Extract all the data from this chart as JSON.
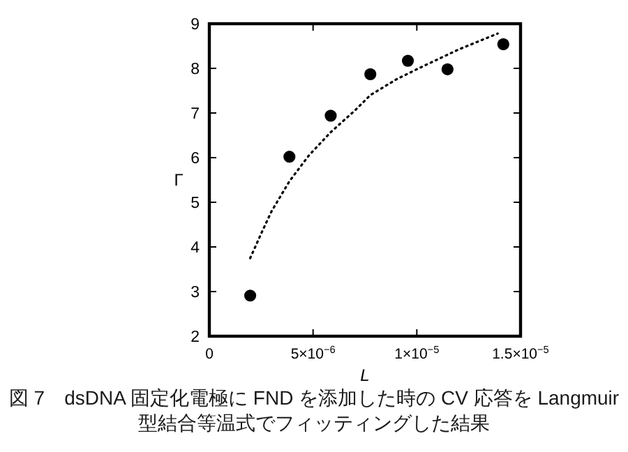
{
  "chart_data": {
    "type": "scatter",
    "xlabel": "L",
    "ylabel": "Γ",
    "xlim": [
      0,
      1.5e-05
    ],
    "ylim": [
      2,
      9
    ],
    "xticks": [
      0,
      {
        "value": 5e-06,
        "label": "5×10$^{−6}$"
      },
      {
        "value": 1e-05,
        "label": "1×10$^{−5}$"
      },
      {
        "value": 1.5e-05,
        "label": "1.5×10$^{−5}$"
      }
    ],
    "yticks": [
      2,
      3,
      4,
      5,
      6,
      7,
      8,
      9
    ],
    "grid": false,
    "series": [
      {
        "color": "#000000",
        "marker": "circle",
        "x": [
          1.97e-06,
          3.86e-06,
          5.85e-06,
          7.76e-06,
          9.57e-06,
          1.148e-05,
          1.417e-05
        ],
        "values": [
          2.91,
          6.02,
          6.94,
          7.87,
          8.17,
          7.98,
          8.54
        ]
      },
      {
        "type": "line",
        "color": "#000000",
        "line_style": "dotted",
        "marker": "none",
        "x": [
          1.97e-06,
          2.5e-06,
          3e-06,
          3.86e-06,
          4.8e-06,
          5.85e-06,
          7e-06,
          7.76e-06,
          9e-06,
          1e-05,
          1.2e-05,
          1.39e-05
        ],
        "values": [
          3.75,
          4.3,
          4.8,
          5.47,
          6.05,
          6.57,
          7.05,
          7.4,
          7.75,
          7.98,
          8.42,
          8.78
        ]
      }
    ],
    "annotations": [
      "図 7　dsDNA 固定化電極に FND を添加した時の CV 応答を Langmuir 型結合等温式でフィッティングした結果"
    ]
  }
}
